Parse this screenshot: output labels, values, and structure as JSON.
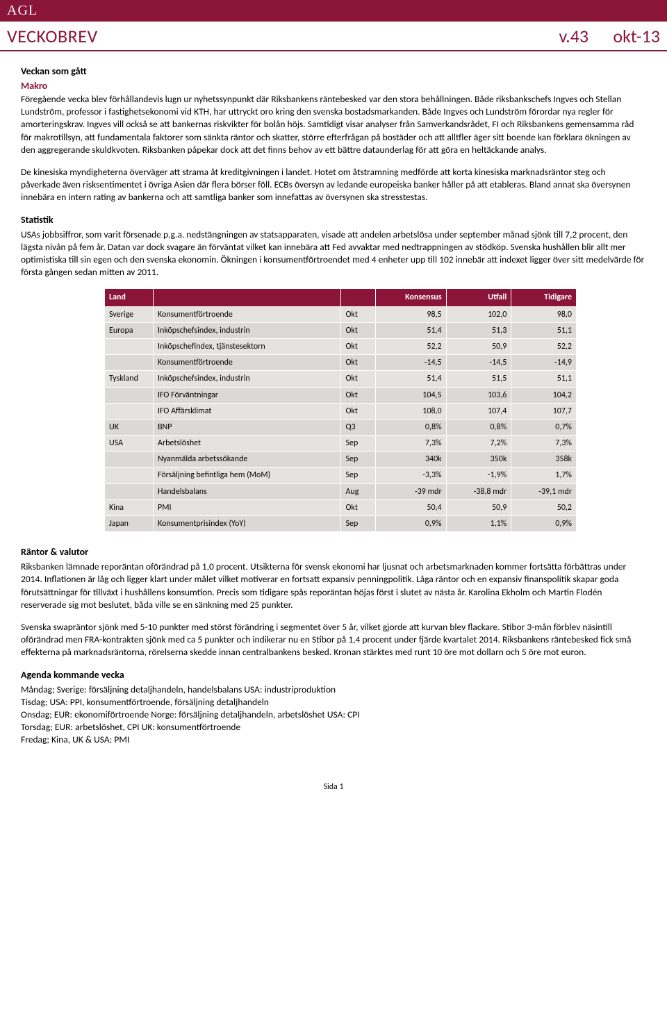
{
  "logo": "AGL",
  "header": {
    "left": "VECKOBREV",
    "version": "v.43",
    "date": "okt-13"
  },
  "sections": {
    "veckan_title": "Veckan som gått",
    "makro_title": "Makro",
    "makro_p1": "Föregående vecka blev förhållandevis lugn ur nyhetssynpunkt där Riksbankens räntebesked var den stora behållningen. Både riksbankschefs Ingves och Stellan Lundström, professor i fastighetsekonomi vid KTH, har uttryckt oro kring den svenska bostadsmarkanden. Både Ingves och Lundström förordar nya regler för amorteringskrav. Ingves vill också se att bankernas riskvikter för bolån höjs. Samtidigt visar analyser från Samverkandsrådet, FI och Riksbankens gemensamma råd för makrotillsyn, att fundamentala faktorer som sänkta räntor och skatter, större efterfrågan på bostäder och att alltfler äger sitt boende kan förklara ökningen av den aggregerande skuldkvoten. Riksbanken påpekar dock att det finns behov av ett bättre dataunderlag för att göra en heltäckande analys.",
    "makro_p2": "De kinesiska myndigheterna överväger att strama åt kreditgivningen i landet. Hotet om åtstramning medförde att korta kinesiska marknadsräntor steg och påverkade även risksentimentet i övriga Asien där flera börser föll. ECBs översyn av ledande europeiska banker håller på att etableras. Bland annat ska översynen innebära en intern rating av bankerna och att samtliga banker som innefattas av översynen ska stresstestas.",
    "statistik_title": "Statistik",
    "statistik_p1": "USAs jobbsiffror, som varit försenade p.g.a. nedstängningen av statsapparaten, visade att andelen arbetslösa under september månad sjönk till 7,2 procent, den lägsta nivån på fem år. Datan var dock svagare än förväntat vilket kan innebära att Fed avvaktar med nedtrappningen av stödköp. Svenska hushållen blir allt mer optimistiska till sin egen och den svenska ekonomin. Ökningen i konsumentförtroendet med 4 enheter upp till 102 innebär att indexet ligger över sitt medelvärde för första gången sedan mitten av 2011.",
    "rantor_title": "Räntor & valutor",
    "rantor_p1": "Riksbanken lämnade reporäntan oförändrad på 1,0 procent. Utsikterna för svensk ekonomi har ljusnat och arbetsmarknaden kommer fortsätta förbättras under 2014. Inflationen är låg och ligger klart under målet vilket motiverar en fortsatt expansiv penningpolitik. Låga räntor och en expansiv finanspolitik skapar goda förutsättningar för tillväxt i hushållens konsumtion. Precis som tidigare spås reporäntan höjas först i slutet av nästa år. Karolina Ekholm och Martin Flodén reserverade sig mot beslutet, båda ville se en sänkning med 25 punkter.",
    "rantor_p2": "Svenska swapräntor sjönk med 5-10 punkter med störst förändring i segmentet över 5 år, vilket gjorde att kurvan blev flackare. Stibor 3-mån förblev näsintill oförändrad men FRA-kontrakten sjönk med ca 5 punkter och indikerar nu en Stibor på 1,4 procent under fjärde kvartalet 2014. Riksbankens räntebesked fick små effekterna på marknadsräntorna, rörelserna skedde innan centralbankens besked. Kronan stärktes med runt 10 öre mot dollarn och 5 öre mot euron.",
    "agenda_title": "Agenda kommande vecka",
    "agenda_mon": "Måndag; Sverige: försäljning detaljhandeln, handelsbalans USA: industriproduktion",
    "agenda_tue": "Tisdag; USA: PPI, konsumentförtroende, försäljning detaljhandeln",
    "agenda_wed": "Onsdag; EUR: ekonomiförtroende Norge: försäljning detaljhandeln, arbetslöshet USA: CPI",
    "agenda_thu": "Torsdag; EUR: arbetslöshet, CPI UK: konsumentförtroende",
    "agenda_fri": "Fredag; Kina, UK & USA: PMI"
  },
  "table": {
    "headers": {
      "land": "Land",
      "blank": "",
      "period": "",
      "konsensus": "Konsensus",
      "utfall": "Utfall",
      "tidigare": "Tidigare"
    },
    "rows": [
      {
        "land": "Sverige",
        "indikator": "Konsumentförtroende",
        "period": "Okt",
        "k": "98,5",
        "u": "102,0",
        "t": "98,0"
      },
      {
        "land": "Europa",
        "indikator": "Inköpschefsindex, industrin",
        "period": "Okt",
        "k": "51,4",
        "u": "51,3",
        "t": "51,1"
      },
      {
        "land": "",
        "indikator": "Inköpschefindex, tjänstesektorn",
        "period": "Okt",
        "k": "52,2",
        "u": "50,9",
        "t": "52,2"
      },
      {
        "land": "",
        "indikator": "Konsumentförtroende",
        "period": "Okt",
        "k": "-14,5",
        "u": "-14,5",
        "t": "-14,9"
      },
      {
        "land": "Tyskland",
        "indikator": "Inköpschefsindex, industrin",
        "period": "Okt",
        "k": "51,4",
        "u": "51,5",
        "t": "51,1"
      },
      {
        "land": "",
        "indikator": "IFO Förväntningar",
        "period": "Okt",
        "k": "104,5",
        "u": "103,6",
        "t": "104,2"
      },
      {
        "land": "",
        "indikator": "IFO Affärsklimat",
        "period": "Okt",
        "k": "108,0",
        "u": "107,4",
        "t": "107,7"
      },
      {
        "land": "UK",
        "indikator": "BNP",
        "period": "Q3",
        "k": "0,8%",
        "u": "0,8%",
        "t": "0,7%"
      },
      {
        "land": "USA",
        "indikator": "Arbetslöshet",
        "period": "Sep",
        "k": "7,3%",
        "u": "7,2%",
        "t": "7,3%"
      },
      {
        "land": "",
        "indikator": "Nyanmälda arbetssökande",
        "period": "Sep",
        "k": "340k",
        "u": "350k",
        "t": "358k"
      },
      {
        "land": "",
        "indikator": "Försäljning befintliga hem (MoM)",
        "period": "Sep",
        "k": "-3,3%",
        "u": "-1,9%",
        "t": "1,7%"
      },
      {
        "land": "",
        "indikator": "Handelsbalans",
        "period": "Aug",
        "k": "-39 mdr",
        "u": "-38,8 mdr",
        "t": "-39,1 mdr"
      },
      {
        "land": "Kina",
        "indikator": "PMI",
        "period": "Okt",
        "k": "50,4",
        "u": "50,9",
        "t": "50,2"
      },
      {
        "land": "Japan",
        "indikator": "Konsumentprisindex (YoY)",
        "period": "Sep",
        "k": "0,9%",
        "u": "1,1%",
        "t": "0,9%"
      }
    ]
  },
  "footer": "Sida 1",
  "colors": {
    "brand": "#8a1538",
    "row_bg": "#e6e2e2",
    "row_bg_alt": "#ddd8d8"
  }
}
